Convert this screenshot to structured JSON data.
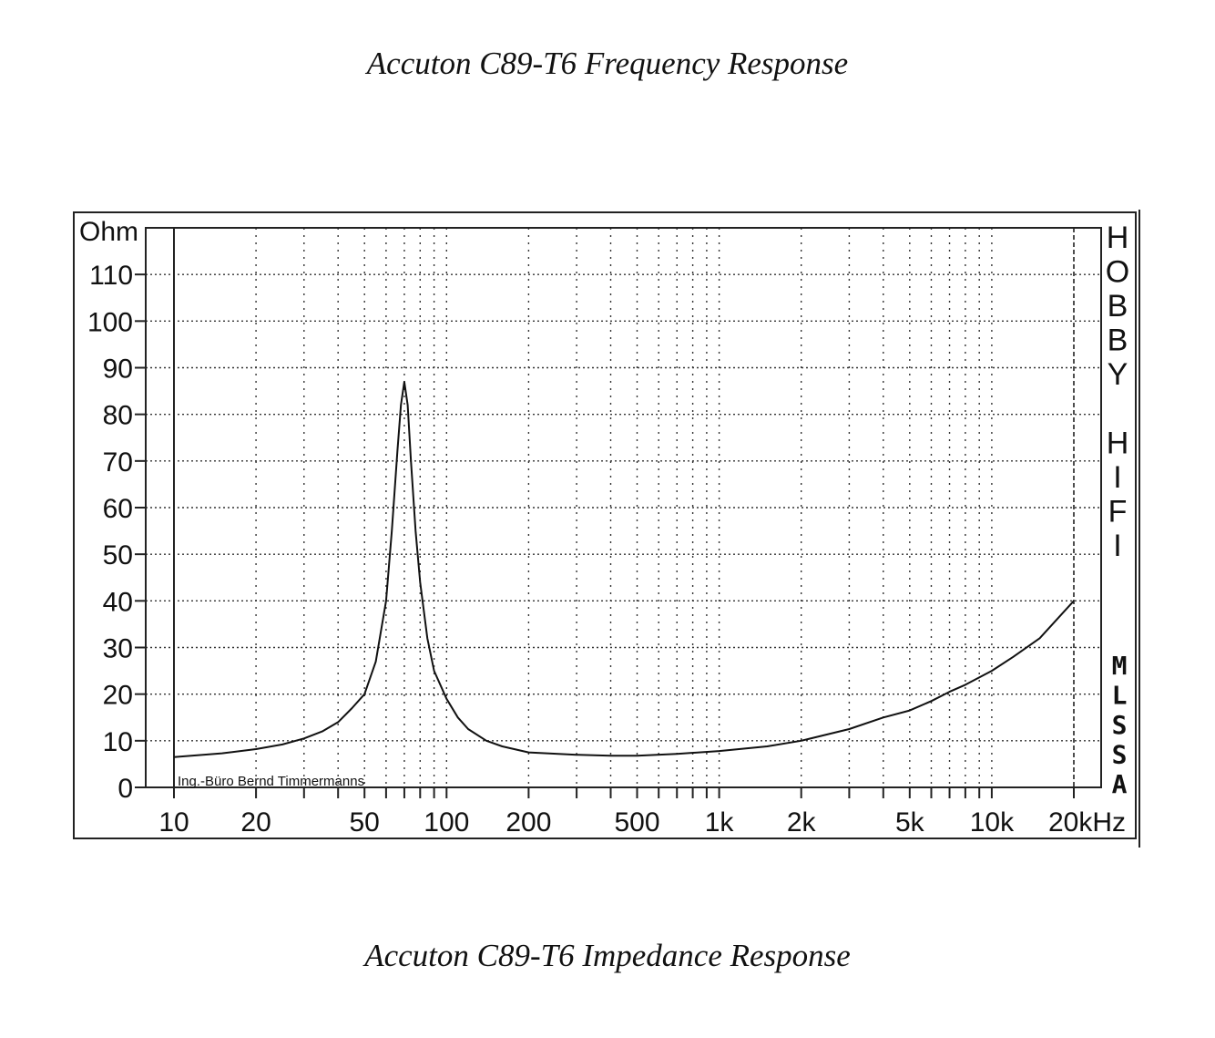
{
  "page": {
    "top_caption": "Accuton C89-T6 Frequency Response",
    "bottom_caption": "Accuton C89-T6 Impedance Response"
  },
  "chart_data": {
    "type": "line",
    "ylabel": "Ohm",
    "x_unit": "Hz",
    "x_scale": "log",
    "xlim": [
      10,
      20000
    ],
    "ylim": [
      0,
      120
    ],
    "grid": true,
    "y_ticks": [
      0,
      10,
      20,
      30,
      40,
      50,
      60,
      70,
      80,
      90,
      100,
      110
    ],
    "x_tick_values": [
      10,
      20,
      50,
      100,
      200,
      500,
      1000,
      2000,
      5000,
      10000,
      20000
    ],
    "x_tick_labels": [
      "10",
      "20",
      "50",
      "100",
      "200",
      "500",
      "1k",
      "2k",
      "5k",
      "10k",
      "20kHz"
    ],
    "side_label": "HOBBY HIFI",
    "mlssa_label": "MLSSA",
    "credit": "Ing.-Büro Bernd Timmermanns",
    "series": [
      {
        "x": [
          10,
          15,
          20,
          25,
          30,
          35,
          40,
          45,
          50,
          55,
          60,
          63,
          66,
          68,
          70,
          72,
          74,
          77,
          80,
          85,
          90,
          100,
          110,
          120,
          140,
          160,
          200,
          300,
          400,
          500,
          700,
          1000,
          1500,
          2000,
          3000,
          4000,
          5000,
          6000,
          7000,
          8000,
          10000,
          12000,
          15000,
          20000
        ],
        "y": [
          6.5,
          7.3,
          8.2,
          9.2,
          10.5,
          12,
          14,
          17,
          20,
          27,
          40,
          55,
          72,
          82,
          87,
          82,
          70,
          55,
          44,
          32,
          25,
          19,
          15,
          12.5,
          10,
          8.8,
          7.5,
          7,
          6.8,
          6.8,
          7.2,
          7.8,
          8.8,
          10,
          12.5,
          15,
          16.5,
          18.5,
          20.5,
          22,
          25,
          28,
          32,
          40
        ]
      }
    ]
  }
}
